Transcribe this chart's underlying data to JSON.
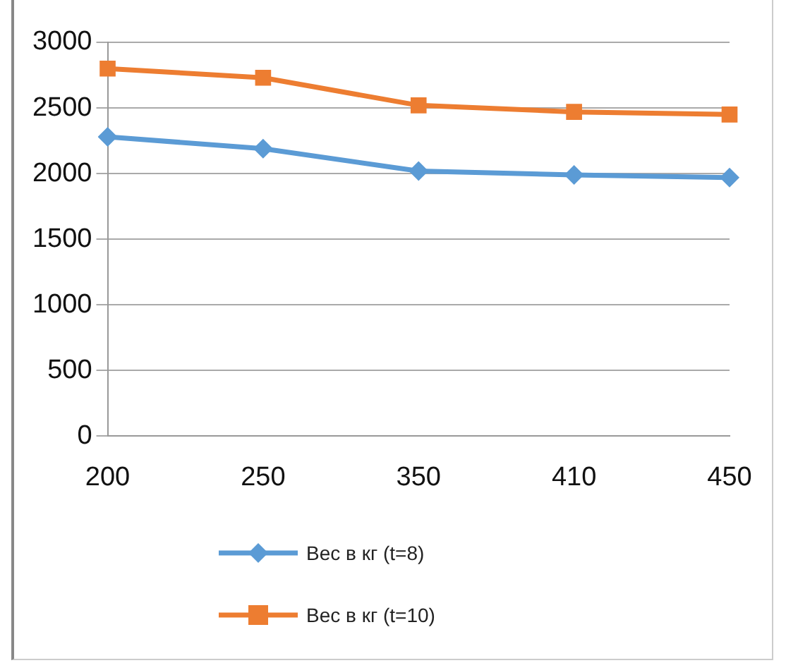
{
  "chart_data": {
    "type": "line",
    "categories": [
      "200",
      "250",
      "350",
      "410",
      "450"
    ],
    "series": [
      {
        "name": "Вес в кг (t=8)",
        "color": "#5b9bd5",
        "marker": "diamond",
        "values": [
          2280,
          2190,
          2020,
          1990,
          1970
        ]
      },
      {
        "name": "Вес в кг (t=10)",
        "color": "#ed7d31",
        "marker": "square",
        "values": [
          2800,
          2730,
          2520,
          2470,
          2450
        ]
      }
    ],
    "ylim": [
      0,
      3000
    ],
    "yticks": [
      0,
      500,
      1000,
      1500,
      2000,
      2500,
      3000
    ],
    "grid": "y",
    "legend": "bottom",
    "line_style": "solid"
  }
}
